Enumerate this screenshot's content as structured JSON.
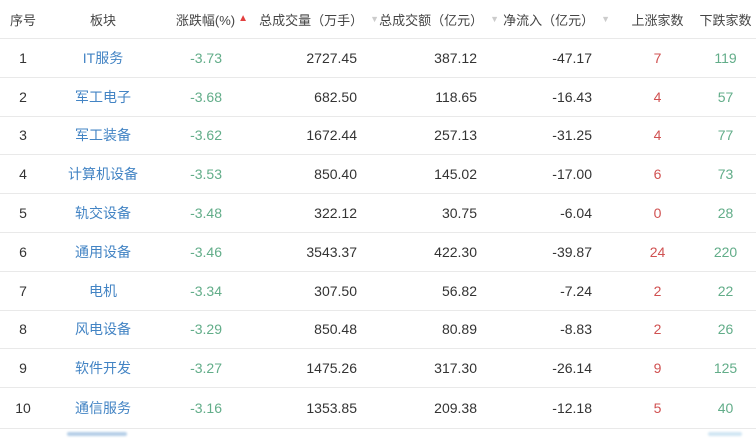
{
  "colors": {
    "link_blue": "#4384c4",
    "green": "#62ad89",
    "red_count": "#d05151",
    "sort_red": "#e2403f",
    "caret_gray": "#cccccc",
    "text_dark": "#333333",
    "header_text": "#444444",
    "divider": "#e9e9e9"
  },
  "table": {
    "columns": [
      {
        "key": "seq",
        "label": "序号"
      },
      {
        "key": "sector",
        "label": "板块"
      },
      {
        "key": "change",
        "label": "涨跌幅(%)",
        "sort_indicator": "asc"
      },
      {
        "key": "volume",
        "label": "总成交量（万手）",
        "has_dropdown": true
      },
      {
        "key": "turnover",
        "label": "总成交额（亿元）",
        "has_dropdown": true
      },
      {
        "key": "net_inflow",
        "label": "净流入（亿元）",
        "has_dropdown": true
      },
      {
        "key": "up",
        "label": "上涨家数"
      },
      {
        "key": "down",
        "label": "下跌家数"
      }
    ],
    "rows": [
      {
        "seq": "1",
        "sector": "IT服务",
        "change": "-3.73",
        "volume": "2727.45",
        "turnover": "387.12",
        "net_inflow": "-47.17",
        "up": "7",
        "down": "119"
      },
      {
        "seq": "2",
        "sector": "军工电子",
        "change": "-3.68",
        "volume": "682.50",
        "turnover": "118.65",
        "net_inflow": "-16.43",
        "up": "4",
        "down": "57"
      },
      {
        "seq": "3",
        "sector": "军工装备",
        "change": "-3.62",
        "volume": "1672.44",
        "turnover": "257.13",
        "net_inflow": "-31.25",
        "up": "4",
        "down": "77"
      },
      {
        "seq": "4",
        "sector": "计算机设备",
        "change": "-3.53",
        "volume": "850.40",
        "turnover": "145.02",
        "net_inflow": "-17.00",
        "up": "6",
        "down": "73"
      },
      {
        "seq": "5",
        "sector": "轨交设备",
        "change": "-3.48",
        "volume": "322.12",
        "turnover": "30.75",
        "net_inflow": "-6.04",
        "up": "0",
        "down": "28"
      },
      {
        "seq": "6",
        "sector": "通用设备",
        "change": "-3.46",
        "volume": "3543.37",
        "turnover": "422.30",
        "net_inflow": "-39.87",
        "up": "24",
        "down": "220"
      },
      {
        "seq": "7",
        "sector": "电机",
        "change": "-3.34",
        "volume": "307.50",
        "turnover": "56.82",
        "net_inflow": "-7.24",
        "up": "2",
        "down": "22"
      },
      {
        "seq": "8",
        "sector": "风电设备",
        "change": "-3.29",
        "volume": "850.48",
        "turnover": "80.89",
        "net_inflow": "-8.83",
        "up": "2",
        "down": "26"
      },
      {
        "seq": "9",
        "sector": "软件开发",
        "change": "-3.27",
        "volume": "1475.26",
        "turnover": "317.30",
        "net_inflow": "-26.14",
        "up": "9",
        "down": "125"
      },
      {
        "seq": "10",
        "sector": "通信服务",
        "change": "-3.16",
        "volume": "1353.85",
        "turnover": "209.38",
        "net_inflow": "-12.18",
        "up": "5",
        "down": "40"
      }
    ]
  },
  "icons": {
    "sort_asc": "▲",
    "caret_down": "▼"
  }
}
